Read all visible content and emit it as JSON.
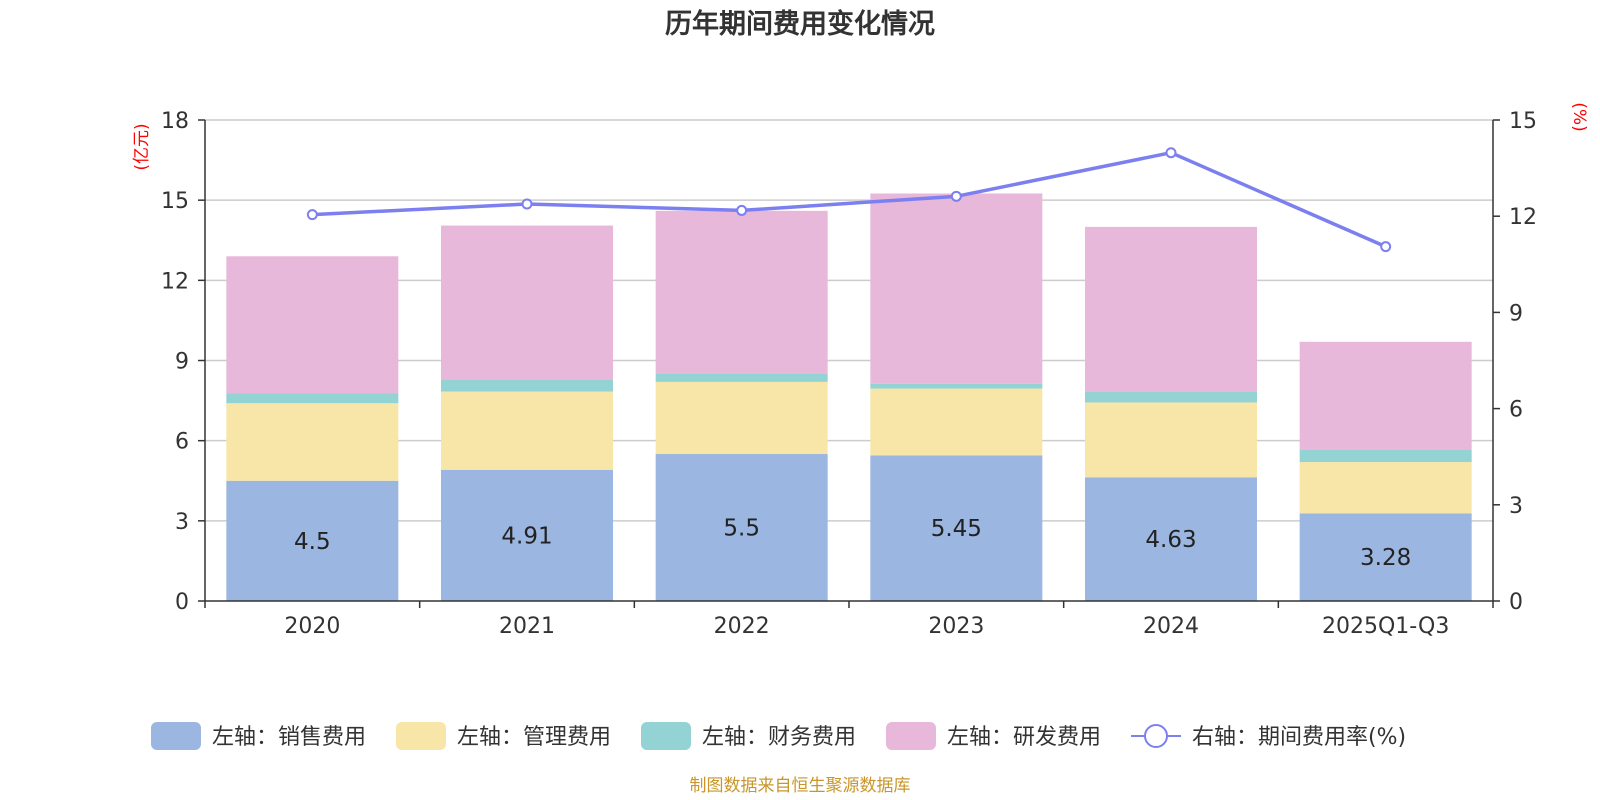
{
  "chart_data": {
    "type": "bar",
    "stacked": true,
    "title": "历年期间费用变化情况",
    "categories": [
      "2020",
      "2021",
      "2022",
      "2023",
      "2024",
      "2025Q1-Q3"
    ],
    "y_left": {
      "unit": "(亿元)",
      "min": 0,
      "max": 18,
      "ticks": [
        0,
        3,
        6,
        9,
        12,
        15,
        18
      ]
    },
    "y_right": {
      "unit": "(%)",
      "min": 0,
      "max": 15,
      "ticks": [
        0,
        3,
        6,
        9,
        12,
        15
      ]
    },
    "grid": true,
    "series": [
      {
        "name": "左轴：销售费用",
        "color": "#9bb6e0",
        "values": [
          4.5,
          4.91,
          5.5,
          5.45,
          4.63,
          3.28
        ],
        "labels": [
          "4.5",
          "4.91",
          "5.5",
          "5.45",
          "4.63",
          "3.28"
        ]
      },
      {
        "name": "左轴：管理费用",
        "color": "#f7e6a8",
        "values": [
          2.9,
          2.93,
          2.7,
          2.5,
          2.8,
          1.92
        ]
      },
      {
        "name": "左轴：财务费用",
        "color": "#94d3d3",
        "values": [
          0.38,
          0.43,
          0.32,
          0.18,
          0.42,
          0.45
        ]
      },
      {
        "name": "左轴：研发费用",
        "color": "#e7b8d9",
        "values": [
          5.12,
          5.78,
          6.08,
          7.12,
          6.15,
          4.05
        ]
      }
    ],
    "line": {
      "name": "右轴：期间费用率(%)",
      "color": "#7b7ff0",
      "values": [
        12.05,
        12.38,
        12.18,
        12.62,
        13.98,
        11.05
      ]
    },
    "legend_position": "bottom-center",
    "source": "制图数据来自恒生聚源数据库"
  }
}
